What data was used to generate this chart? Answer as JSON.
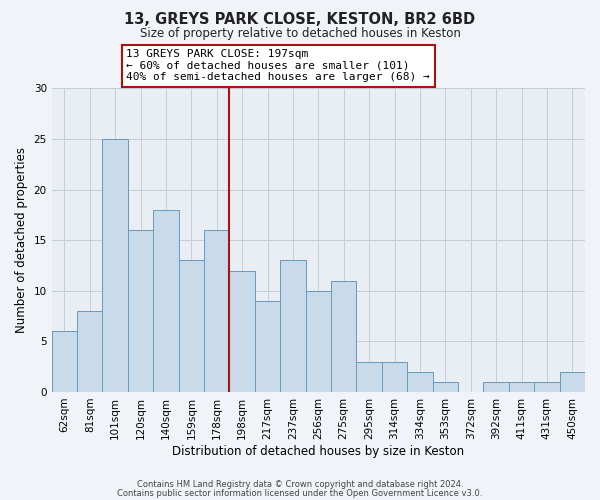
{
  "title": "13, GREYS PARK CLOSE, KESTON, BR2 6BD",
  "subtitle": "Size of property relative to detached houses in Keston",
  "xlabel": "Distribution of detached houses by size in Keston",
  "ylabel": "Number of detached properties",
  "bar_labels": [
    "62sqm",
    "81sqm",
    "101sqm",
    "120sqm",
    "140sqm",
    "159sqm",
    "178sqm",
    "198sqm",
    "217sqm",
    "237sqm",
    "256sqm",
    "275sqm",
    "295sqm",
    "314sqm",
    "334sqm",
    "353sqm",
    "372sqm",
    "392sqm",
    "411sqm",
    "431sqm",
    "450sqm"
  ],
  "bar_values": [
    6,
    8,
    25,
    16,
    18,
    13,
    16,
    12,
    9,
    13,
    10,
    11,
    3,
    3,
    2,
    1,
    0,
    1,
    1,
    1,
    2
  ],
  "bar_color": "#c9daea",
  "bar_edge_color": "#6699bb",
  "vline_index": 7,
  "vline_color": "#aa1111",
  "ylim": [
    0,
    30
  ],
  "yticks": [
    0,
    5,
    10,
    15,
    20,
    25,
    30
  ],
  "annotation_title": "13 GREYS PARK CLOSE: 197sqm",
  "annotation_line1": "← 60% of detached houses are smaller (101)",
  "annotation_line2": "40% of semi-detached houses are larger (68) →",
  "annotation_box_facecolor": "#ffffff",
  "annotation_box_edgecolor": "#aa1111",
  "footnote1": "Contains HM Land Registry data © Crown copyright and database right 2024.",
  "footnote2": "Contains public sector information licensed under the Open Government Licence v3.0.",
  "background_color": "#f0f4f8",
  "plot_bg_color": "#e8eef4",
  "grid_color": "#c5cfd8",
  "title_fontsize": 10.5,
  "subtitle_fontsize": 8.5,
  "xlabel_fontsize": 8.5,
  "ylabel_fontsize": 8.5,
  "tick_fontsize": 7.5,
  "footnote_fontsize": 6.0,
  "ann_fontsize": 8.0
}
